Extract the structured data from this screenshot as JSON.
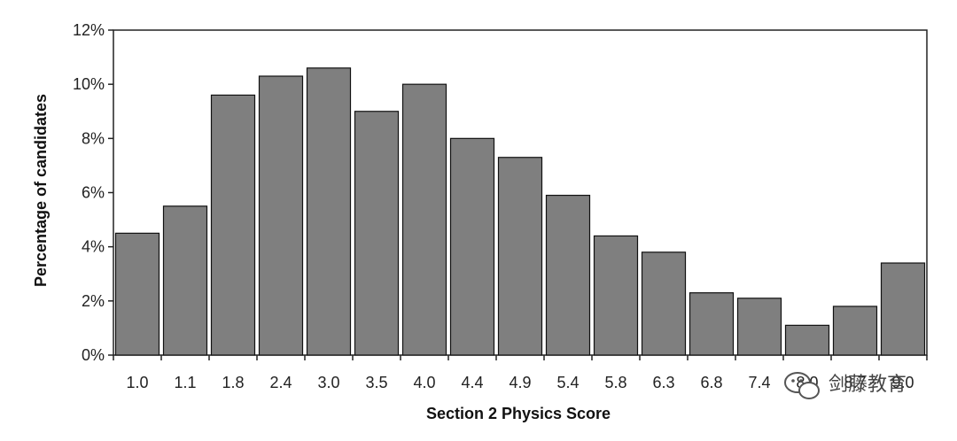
{
  "chart_data": {
    "type": "bar",
    "categories": [
      "1.0",
      "1.1",
      "1.8",
      "2.4",
      "3.0",
      "3.5",
      "4.0",
      "4.4",
      "4.9",
      "5.4",
      "5.8",
      "6.3",
      "6.8",
      "7.4",
      "8.0",
      "8.7",
      "9.0"
    ],
    "series": [
      {
        "values": [
          4.5,
          5.5,
          9.6,
          10.3,
          10.6,
          9.0,
          10.0,
          8.0,
          7.3,
          5.9,
          4.4,
          3.8,
          2.3,
          2.1,
          1.1,
          1.8,
          3.4
        ]
      }
    ],
    "xlabel": "Section 2 Physics Score",
    "ylabel": "Percentage of candidates",
    "ylim": [
      0,
      12
    ],
    "yticks": [
      "0%",
      "2%",
      "4%",
      "6%",
      "8%",
      "10%",
      "12%"
    ],
    "grid": false,
    "bar_color": "#7f7f7f",
    "bar_edge_color": "#111111"
  },
  "watermark": {
    "text": "剑藤教育",
    "icon": "wechat-icon"
  }
}
